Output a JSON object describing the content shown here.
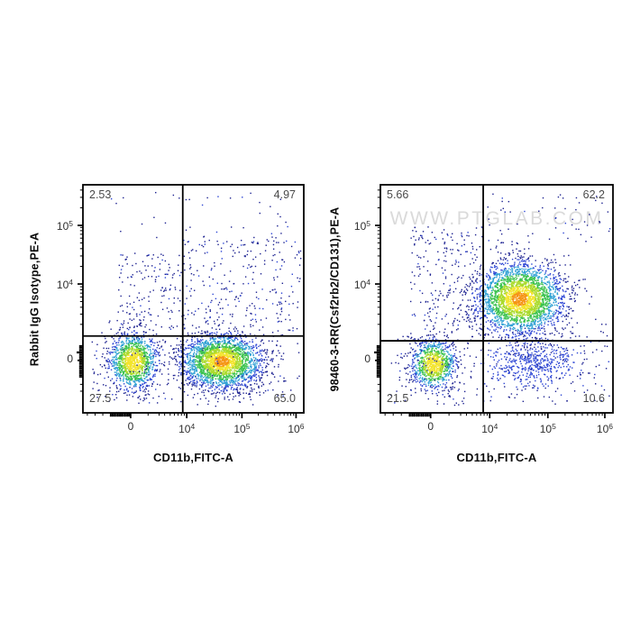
{
  "figure": {
    "background": "#ffffff"
  },
  "watermark": {
    "text": "WWW.PTGLAB.COM",
    "color": "#dadada"
  },
  "axes": {
    "x": {
      "scale": "biexponential",
      "major": [
        {
          "t": "0",
          "e": "",
          "f": 0.216
        },
        {
          "t": "10",
          "e": "4",
          "f": 0.47
        },
        {
          "t": "10",
          "e": "5",
          "f": 0.72
        },
        {
          "t": "10",
          "e": "6",
          "f": 0.965
        }
      ],
      "minor": [
        0.02,
        0.055,
        0.09,
        0.295,
        0.345,
        0.37,
        0.395,
        0.414,
        0.431,
        0.446,
        0.459,
        0.545,
        0.589,
        0.62,
        0.645,
        0.664,
        0.681,
        0.695,
        0.708,
        0.794,
        0.837,
        0.868,
        0.891,
        0.911,
        0.927,
        0.941,
        0.954
      ],
      "blob": {
        "from": 0.125,
        "to": 0.212,
        "step": 0.0065
      }
    },
    "y": {
      "scale": "biexponential",
      "major": [
        {
          "t": "10",
          "e": "5",
          "f": 0.178
        },
        {
          "t": "10",
          "e": "4",
          "f": 0.435
        },
        {
          "t": "0",
          "e": "",
          "f": 0.77
        }
      ],
      "minor": [
        0.023,
        0.055,
        0.101,
        0.187,
        0.201,
        0.217,
        0.234,
        0.255,
        0.28,
        0.312,
        0.358,
        0.447,
        0.46,
        0.475,
        0.492,
        0.512,
        0.537,
        0.567,
        0.612,
        0.875,
        0.905
      ],
      "blob": {
        "from": 0.706,
        "to": 0.845,
        "step": 0.0065
      }
    }
  },
  "palette": [
    "#1c2190",
    "#2b44d4",
    "#2fa0d4",
    "#3bc24f",
    "#a9da2b",
    "#f3e42d",
    "#f59414"
  ],
  "chart_data": [
    {
      "id": "isotype-control-plot",
      "type": "scatter",
      "xlabel": "CD11b,FITC-A",
      "ylabel": "Rabbit IgG Isotype,PE-A",
      "x_tick_values": [
        "0",
        "1e4",
        "1e5",
        "1e6"
      ],
      "y_tick_values": [
        "1e5",
        "1e4",
        "0"
      ],
      "quadrants": {
        "tl": "2.53",
        "tr": "4.97",
        "bl": "27.5",
        "br": "65.0"
      },
      "quadrant_gate": {
        "vx": 0.452,
        "hy": 0.663
      },
      "watermark": false,
      "clusters": [
        {
          "kind": "gauss",
          "cx": 0.229,
          "cy": 0.775,
          "sx": 0.055,
          "sy": 0.062,
          "n": 1300,
          "max": 5
        },
        {
          "kind": "gauss",
          "cx": 0.629,
          "cy": 0.775,
          "sx": 0.092,
          "sy": 0.06,
          "n": 2600,
          "max": 6
        },
        {
          "kind": "spray",
          "x0": 0.15,
          "x1": 0.42,
          "y0": 0.3,
          "y1": 0.63,
          "n": 140
        },
        {
          "kind": "spray",
          "x0": 0.43,
          "x1": 0.99,
          "y0": 0.24,
          "y1": 0.62,
          "n": 260
        },
        {
          "kind": "spray",
          "x0": 0.04,
          "x1": 0.99,
          "y0": 0.62,
          "y1": 0.97,
          "n": 200
        },
        {
          "kind": "spray",
          "x0": 0.1,
          "x1": 0.95,
          "y0": 0.03,
          "y1": 0.24,
          "n": 40
        }
      ]
    },
    {
      "id": "antibody-plot",
      "type": "scatter",
      "xlabel": "CD11b,FITC-A",
      "ylabel": "98460-3-RR(Csf2rb2/CD131),PE-A",
      "x_tick_values": [
        "0",
        "1e4",
        "1e5",
        "1e6"
      ],
      "y_tick_values": [
        "1e5",
        "1e4",
        "0"
      ],
      "quadrants": {
        "tl": "5.66",
        "tr": "62.2",
        "bl": "21.5",
        "br": "10.6"
      },
      "quadrant_gate": {
        "vx": 0.442,
        "hy": 0.684
      },
      "watermark": true,
      "clusters": [
        {
          "kind": "gauss",
          "cx": 0.229,
          "cy": 0.787,
          "sx": 0.048,
          "sy": 0.055,
          "n": 950,
          "max": 5
        },
        {
          "kind": "gauss",
          "cx": 0.6,
          "cy": 0.5,
          "sx": 0.095,
          "sy": 0.08,
          "n": 2900,
          "max": 6
        },
        {
          "kind": "gauss",
          "cx": 0.65,
          "cy": 0.78,
          "sx": 0.105,
          "sy": 0.052,
          "n": 480,
          "max": 1
        },
        {
          "kind": "spray",
          "x0": 0.13,
          "x1": 0.42,
          "y0": 0.18,
          "y1": 0.66,
          "n": 210
        },
        {
          "kind": "spray",
          "x0": 0.43,
          "x1": 0.99,
          "y0": 0.04,
          "y1": 0.26,
          "n": 60
        },
        {
          "kind": "spray",
          "x0": 0.04,
          "x1": 0.42,
          "y0": 0.66,
          "y1": 0.97,
          "n": 110
        },
        {
          "kind": "spray",
          "x0": 0.43,
          "x1": 0.99,
          "y0": 0.6,
          "y1": 0.97,
          "n": 140
        }
      ]
    }
  ]
}
